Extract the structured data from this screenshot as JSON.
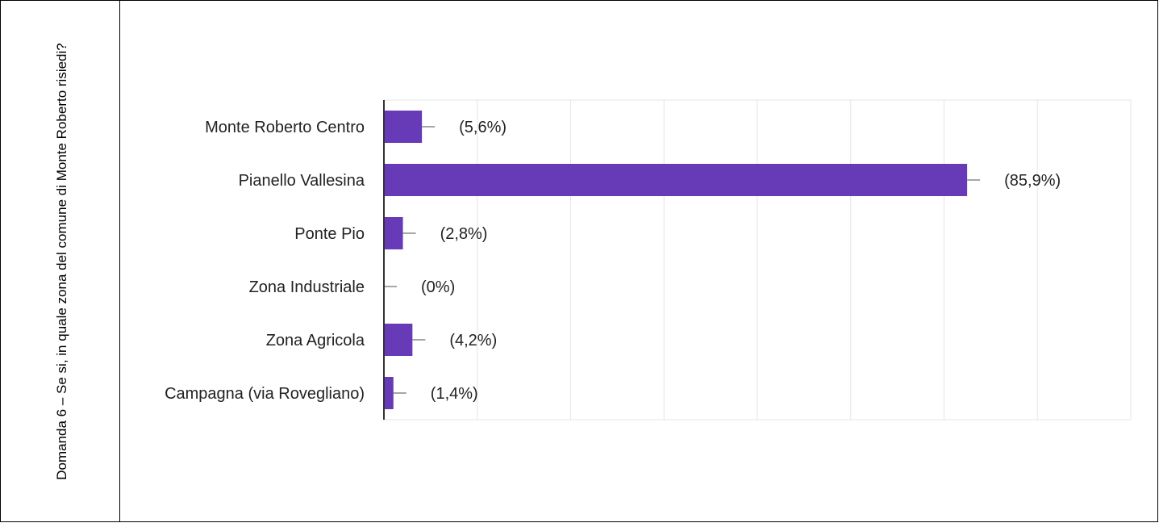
{
  "question": "Domanda 6 – Se si, in quale zona del comune di Monte Roberto risiedi?",
  "colors": {
    "bar": "#673ab7",
    "grid": "#e6e6e6",
    "axis": "#333333",
    "errbar": "#888888"
  },
  "chart_data": {
    "type": "bar",
    "orientation": "horizontal",
    "categories": [
      "Monte Roberto Centro",
      "Pianello Vallesina",
      "Ponte Pio",
      "Zona Industriale",
      "Zona Agricola",
      "Campagna (via Rovegliano)"
    ],
    "values": [
      5.6,
      85.9,
      2.8,
      0,
      4.2,
      1.4
    ],
    "data_labels": [
      "(5,6%)",
      "(85,9%)",
      "(2,8%)",
      "(0%)",
      "(4,2%)",
      "(1,4%)"
    ],
    "xlim": [
      0,
      110
    ],
    "grid": true,
    "gridlines": 8
  }
}
